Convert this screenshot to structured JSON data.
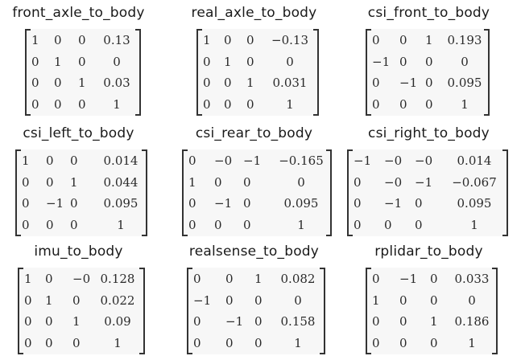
{
  "matrices": [
    {
      "title": "front_axle_to_body",
      "rows": [
        [
          "1",
          "0",
          "0",
          "0.13"
        ],
        [
          "0",
          "1",
          "0",
          "0"
        ],
        [
          "0",
          "0",
          "1",
          "0.03"
        ],
        [
          "0",
          "0",
          "0",
          "1"
        ]
      ]
    },
    {
      "title": "real_axle_to_body",
      "rows": [
        [
          "1",
          "0",
          "0",
          "−0.13"
        ],
        [
          "0",
          "1",
          "0",
          "0"
        ],
        [
          "0",
          "0",
          "1",
          "0.031"
        ],
        [
          "0",
          "0",
          "0",
          "1"
        ]
      ]
    },
    {
      "title": "csi_front_to_body",
      "rows": [
        [
          "0",
          "0",
          "1",
          "0.193"
        ],
        [
          "−1",
          "0",
          "0",
          "0"
        ],
        [
          "0",
          "−1",
          "0",
          "0.095"
        ],
        [
          "0",
          "0",
          "0",
          "1"
        ]
      ]
    },
    {
      "title": "csi_left_to_body",
      "rows": [
        [
          "1",
          "0",
          "0",
          "0.014"
        ],
        [
          "0",
          "0",
          "1",
          "0.044"
        ],
        [
          "0",
          "−1",
          "0",
          "0.095"
        ],
        [
          "0",
          "0",
          "0",
          "1"
        ]
      ]
    },
    {
      "title": "csi_rear_to_body",
      "rows": [
        [
          "0",
          "−0",
          "−1",
          "−0.165"
        ],
        [
          "1",
          "0",
          "0",
          "0"
        ],
        [
          "0",
          "−1",
          "0",
          "0.095"
        ],
        [
          "0",
          "0",
          "0",
          "1"
        ]
      ]
    },
    {
      "title": "csi_right_to_body",
      "rows": [
        [
          "−1",
          "−0",
          "−0",
          "0.014"
        ],
        [
          "0",
          "−0",
          "−1",
          "−0.067"
        ],
        [
          "0",
          "−1",
          "0",
          "0.095"
        ],
        [
          "0",
          "0",
          "0",
          "1"
        ]
      ]
    },
    {
      "title": "imu_to_body",
      "rows": [
        [
          "1",
          "0",
          "−0",
          "0.128"
        ],
        [
          "0",
          "1",
          "0",
          "0.022"
        ],
        [
          "0",
          "0",
          "1",
          "0.09"
        ],
        [
          "0",
          "0",
          "0",
          "1"
        ]
      ]
    },
    {
      "title": "realsense_to_body",
      "rows": [
        [
          "0",
          "0",
          "1",
          "0.082"
        ],
        [
          "−1",
          "0",
          "0",
          "0"
        ],
        [
          "0",
          "−1",
          "0",
          "0.158"
        ],
        [
          "0",
          "0",
          "0",
          "1"
        ]
      ]
    },
    {
      "title": "rplidar_to_body",
      "rows": [
        [
          "0",
          "−1",
          "0",
          "0.033"
        ],
        [
          "1",
          "0",
          "0",
          "0"
        ],
        [
          "0",
          "0",
          "1",
          "0.186"
        ],
        [
          "0",
          "0",
          "0",
          "1"
        ]
      ]
    }
  ]
}
